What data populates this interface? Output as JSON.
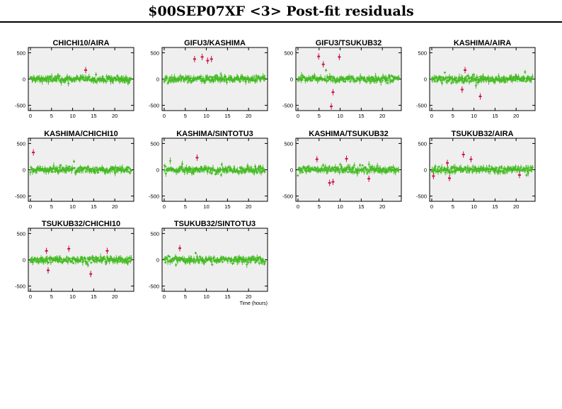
{
  "title": "$00SEP07XF <3> Post-fit residuals",
  "colors": {
    "panel_bg": "#efefef",
    "residual": "#44bb22",
    "outlier": "#cc1144"
  },
  "chart_data": [
    {
      "type": "scatter",
      "title": "CHICHI10/AIRA",
      "ylim": [
        -600,
        600
      ],
      "xlim": [
        -0.5,
        24.5
      ],
      "yticks": [
        500,
        0,
        -500
      ],
      "xticks": [
        0,
        5,
        10,
        15,
        20
      ],
      "outliers": [
        [
          13.1,
          170
        ]
      ]
    },
    {
      "type": "scatter",
      "title": "GIFU3/KASHIMA",
      "ylim": [
        -600,
        600
      ],
      "xlim": [
        -0.5,
        24.5
      ],
      "yticks": [
        500,
        0,
        -500
      ],
      "xticks": [
        0,
        5,
        10,
        15,
        20
      ],
      "outliers": [
        [
          7.2,
          380
        ],
        [
          9.0,
          420
        ],
        [
          10.3,
          350
        ],
        [
          11.2,
          380
        ]
      ]
    },
    {
      "type": "scatter",
      "title": "GIFU3/TSUKUB32",
      "ylim": [
        -600,
        600
      ],
      "xlim": [
        -0.5,
        24.5
      ],
      "yticks": [
        500,
        0,
        -500
      ],
      "xticks": [
        0,
        5,
        10,
        15,
        20
      ],
      "outliers": [
        [
          4.9,
          430
        ],
        [
          6.0,
          280
        ],
        [
          7.9,
          -520
        ],
        [
          8.3,
          -250
        ],
        [
          9.8,
          420
        ]
      ]
    },
    {
      "type": "scatter",
      "title": "KASHIMA/AIRA",
      "ylim": [
        -600,
        600
      ],
      "xlim": [
        -0.5,
        24.5
      ],
      "yticks": [
        500,
        0,
        -500
      ],
      "xticks": [
        0,
        5,
        10,
        15,
        20
      ],
      "outliers": [
        [
          7.2,
          -200
        ],
        [
          7.9,
          170
        ],
        [
          11.5,
          -330
        ]
      ]
    },
    {
      "type": "scatter",
      "title": "KASHIMA/CHICHI10",
      "ylim": [
        -600,
        600
      ],
      "xlim": [
        -0.5,
        24.5
      ],
      "yticks": [
        500,
        0,
        -500
      ],
      "xticks": [
        0,
        5,
        10,
        15,
        20
      ],
      "outliers": [
        [
          0.7,
          330
        ]
      ]
    },
    {
      "type": "scatter",
      "title": "KASHIMA/SINTOTU3",
      "ylim": [
        -600,
        600
      ],
      "xlim": [
        -0.5,
        24.5
      ],
      "yticks": [
        500,
        0,
        -500
      ],
      "xticks": [
        0,
        5,
        10,
        15,
        20
      ],
      "outliers": [
        [
          7.8,
          230
        ]
      ]
    },
    {
      "type": "scatter",
      "title": "KASHIMA/TSUKUB32",
      "ylim": [
        -600,
        600
      ],
      "xlim": [
        -0.5,
        24.5
      ],
      "yticks": [
        500,
        0,
        -500
      ],
      "xticks": [
        0,
        5,
        10,
        15,
        20
      ],
      "outliers": [
        [
          4.5,
          200
        ],
        [
          7.5,
          -250
        ],
        [
          8.3,
          -230
        ],
        [
          11.5,
          210
        ],
        [
          16.8,
          -170
        ]
      ]
    },
    {
      "type": "scatter",
      "title": "TSUKUB32/AIRA",
      "ylim": [
        -600,
        600
      ],
      "xlim": [
        -0.5,
        24.5
      ],
      "yticks": [
        500,
        0,
        -500
      ],
      "xticks": [
        0,
        5,
        10,
        15,
        20
      ],
      "outliers": [
        [
          0.4,
          -120
        ],
        [
          3.7,
          130
        ],
        [
          4.2,
          -160
        ],
        [
          7.5,
          290
        ],
        [
          9.3,
          200
        ],
        [
          20.8,
          -100
        ]
      ]
    },
    {
      "type": "scatter",
      "title": "TSUKUB32/CHICHI10",
      "ylim": [
        -600,
        600
      ],
      "xlim": [
        -0.5,
        24.5
      ],
      "yticks": [
        500,
        0,
        -500
      ],
      "xticks": [
        0,
        5,
        10,
        15,
        20
      ],
      "outliers": [
        [
          3.8,
          170
        ],
        [
          4.2,
          -200
        ],
        [
          9.1,
          210
        ],
        [
          14.3,
          -270
        ],
        [
          18.2,
          170
        ]
      ]
    },
    {
      "type": "scatter",
      "title": "TSUKUB32/SINTOTU3",
      "ylim": [
        -600,
        600
      ],
      "xlim": [
        -0.5,
        24.5
      ],
      "yticks": [
        500,
        0,
        -500
      ],
      "xticks": [
        0,
        5,
        10,
        15,
        20
      ],
      "xlabel": "Time (hours)",
      "outliers": [
        [
          3.7,
          220
        ]
      ]
    }
  ]
}
